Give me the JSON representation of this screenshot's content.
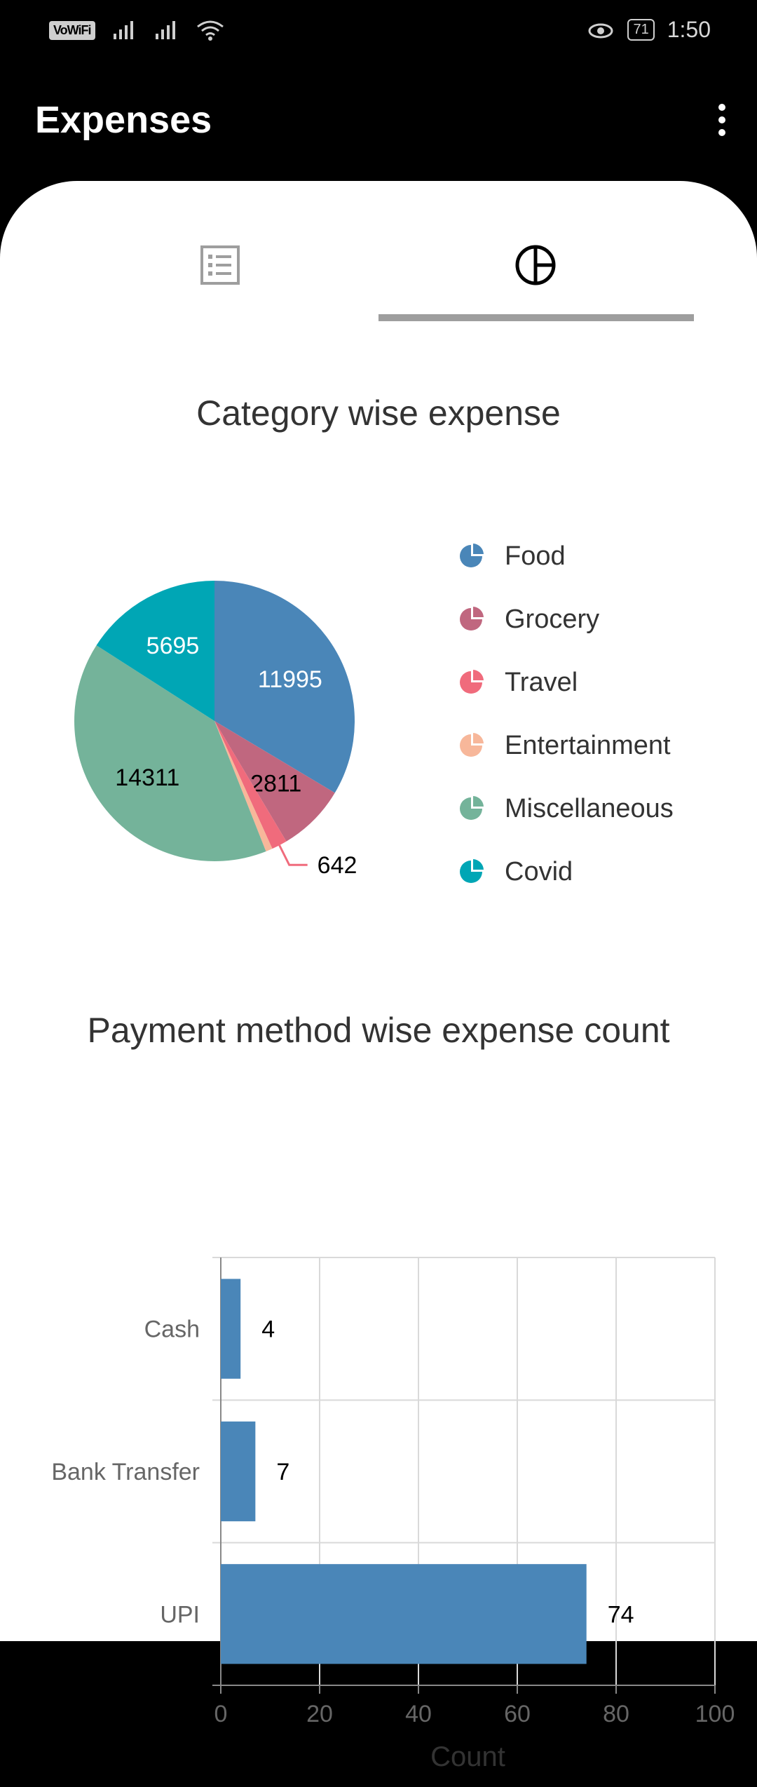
{
  "status": {
    "network": "VoWiFi",
    "battery": "71",
    "time": "1:50"
  },
  "appbar": {
    "title": "Expenses",
    "menu_icon": "more-vert-icon"
  },
  "tabs": [
    {
      "name": "list",
      "icon": "list-icon",
      "selected": false
    },
    {
      "name": "chart",
      "icon": "pie-icon",
      "selected": true
    }
  ],
  "pie": {
    "title": "Category wise expense",
    "chart_data": {
      "type": "pie",
      "title": "Category wise expense",
      "slices": [
        {
          "label": "Food",
          "value": 11995,
          "color": "#4a86b8"
        },
        {
          "label": "Grocery",
          "value": 2811,
          "color": "#c0677f"
        },
        {
          "label": "Travel",
          "value": 642,
          "color": "#f06b7c"
        },
        {
          "label": "Entertainment",
          "value": 280,
          "color": "#f7b79a"
        },
        {
          "label": "Miscellaneous",
          "value": 14311,
          "color": "#74b39a"
        },
        {
          "label": "Covid",
          "value": 5695,
          "color": "#00a6b5"
        }
      ],
      "legend": "right"
    }
  },
  "bar": {
    "title": "Payment method wise expense count",
    "chart_data": {
      "type": "bar",
      "orientation": "horizontal",
      "categories": [
        "Cash",
        "Bank Transfer",
        "UPI"
      ],
      "values": [
        4,
        7,
        74
      ],
      "xlabel": "Count",
      "xlim": [
        0,
        100
      ],
      "xticks": [
        "0",
        "20",
        "40",
        "60",
        "80",
        "100"
      ],
      "color": "#4a86b8",
      "grid": true
    }
  }
}
